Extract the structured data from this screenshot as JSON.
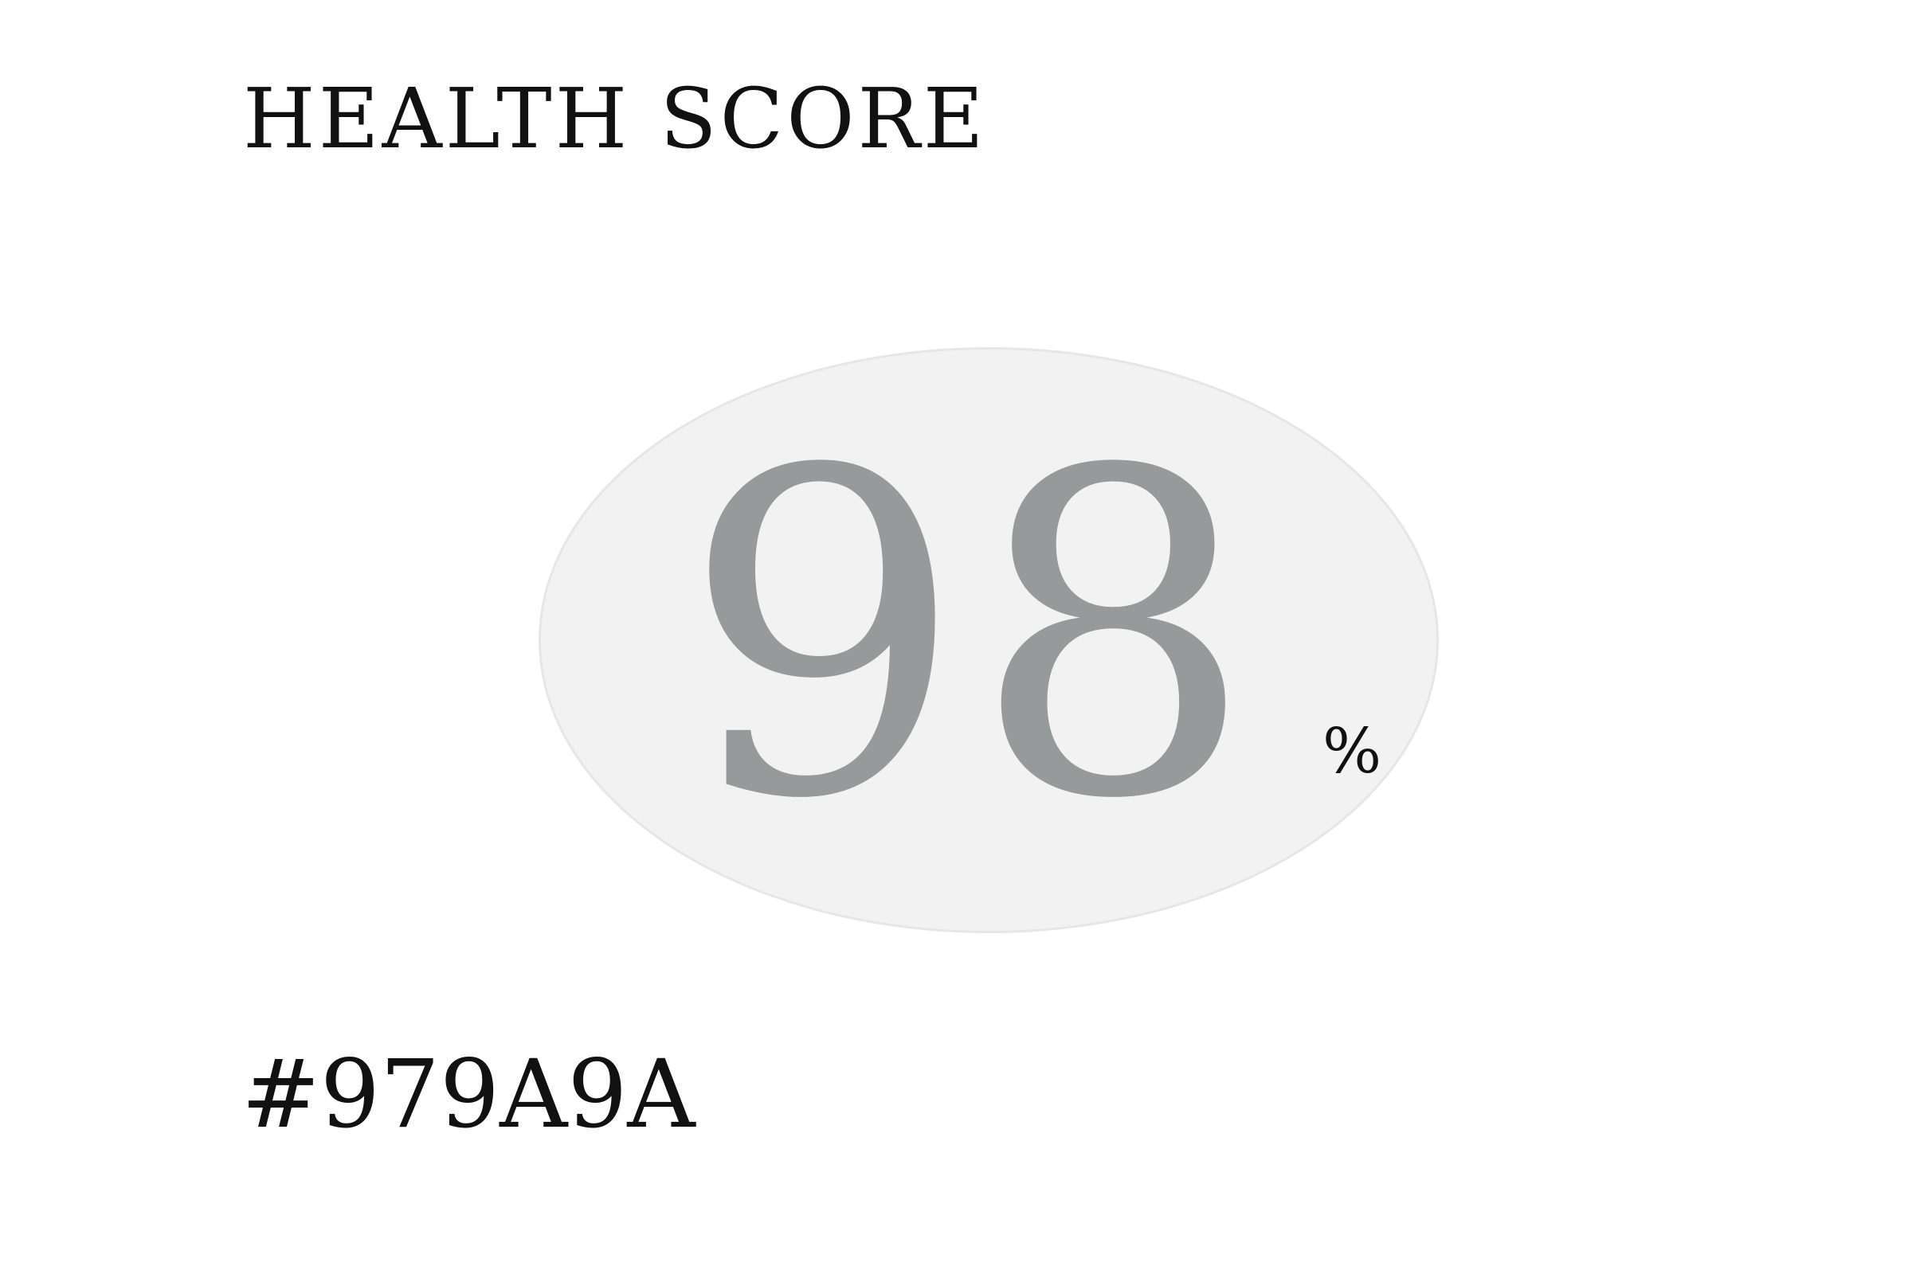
{
  "title": "HEALTH SCORE",
  "score": {
    "value": "98",
    "unit": "%",
    "color": "#979A9A",
    "ellipse_fill": "#f2f2f2",
    "ellipse_border": "#e6e6e6"
  },
  "color_code": "#979A9A"
}
